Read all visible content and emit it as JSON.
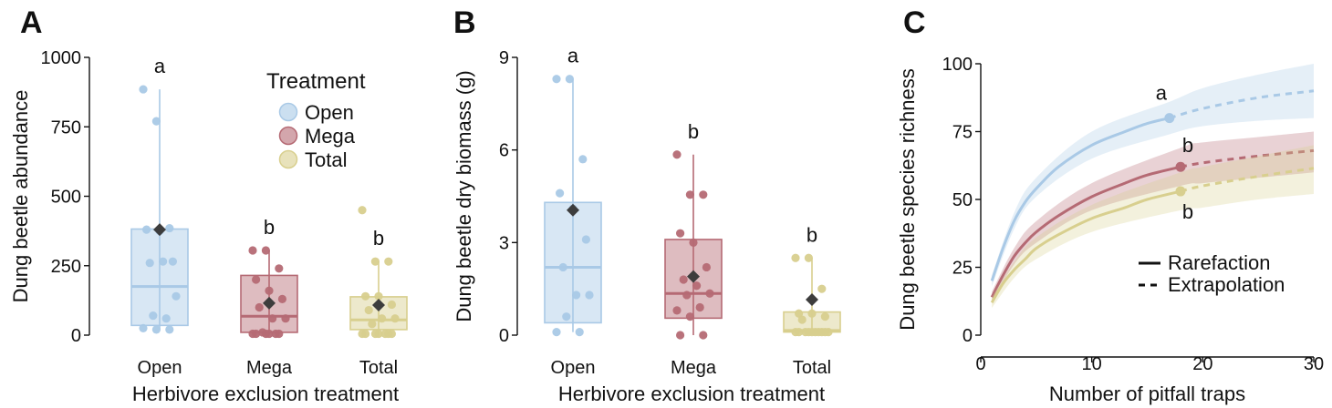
{
  "colors": {
    "Open": "#a9c9e6",
    "Mega": "#b56a74",
    "Total": "#d8cf8e",
    "mean_marker": "#3d3d3d"
  },
  "chart_data": [
    {
      "panel": "A",
      "type": "box",
      "xlabel": "Herbivore exclusion treatment",
      "ylabel": "Dung beetle abundance",
      "ylim": [
        0,
        1000
      ],
      "yticks": [
        0,
        250,
        500,
        750,
        1000
      ],
      "categories": [
        "Open",
        "Mega",
        "Total"
      ],
      "legend": {
        "title": "Treatment",
        "position": "top-right",
        "entries": [
          "Open",
          "Mega",
          "Total"
        ]
      },
      "groups": [
        {
          "name": "Open",
          "q1": 35,
          "median": 175,
          "q3": 382,
          "whisker_low": 20,
          "whisker_high": 885,
          "mean": 380,
          "significance": "a",
          "points": [
            885,
            770,
            385,
            380,
            375,
            265,
            260,
            265,
            140,
            70,
            60,
            25,
            20,
            20
          ]
        },
        {
          "name": "Mega",
          "q1": 10,
          "median": 68,
          "q3": 215,
          "whisker_low": 0,
          "whisker_high": 305,
          "mean": 115,
          "significance": "b",
          "points": [
            305,
            305,
            240,
            200,
            160,
            130,
            100,
            60,
            60,
            10,
            5,
            5,
            5,
            5,
            5,
            5
          ]
        },
        {
          "name": "Total",
          "q1": 20,
          "median": 55,
          "q3": 138,
          "whisker_low": 0,
          "whisker_high": 265,
          "mean": 108,
          "significance": "b",
          "points": [
            450,
            265,
            265,
            140,
            140,
            110,
            90,
            60,
            60,
            40,
            5,
            5,
            5,
            5,
            5,
            5,
            5
          ]
        }
      ]
    },
    {
      "panel": "B",
      "type": "box",
      "xlabel": "Herbivore exclusion treatment",
      "ylabel": "Dung beetle dry biomass (g)",
      "ylim": [
        0,
        9
      ],
      "yticks": [
        0,
        3,
        6,
        9
      ],
      "categories": [
        "Open",
        "Mega",
        "Total"
      ],
      "groups": [
        {
          "name": "Open",
          "q1": 0.4,
          "median": 2.2,
          "q3": 4.3,
          "whisker_low": 0.1,
          "whisker_high": 8.3,
          "mean": 4.05,
          "significance": "a",
          "points": [
            8.3,
            8.3,
            5.7,
            4.6,
            4.1,
            3.1,
            2.2,
            1.3,
            1.3,
            0.6,
            0.1,
            0.1
          ]
        },
        {
          "name": "Mega",
          "q1": 0.55,
          "median": 1.35,
          "q3": 3.1,
          "whisker_low": 0.0,
          "whisker_high": 5.85,
          "mean": 1.9,
          "significance": "b",
          "points": [
            5.85,
            4.55,
            4.55,
            3.3,
            3.0,
            2.2,
            1.8,
            1.6,
            1.35,
            1.3,
            0.9,
            0.8,
            0.6,
            0.0,
            0.0
          ]
        },
        {
          "name": "Total",
          "q1": 0.1,
          "median": 0.15,
          "q3": 0.75,
          "whisker_low": 0.05,
          "whisker_high": 2.5,
          "mean": 1.15,
          "significance": "b",
          "points": [
            2.5,
            2.5,
            1.5,
            0.7,
            0.7,
            0.6,
            0.5,
            0.1,
            0.1,
            0.1,
            0.1,
            0.1,
            0.1,
            0.1,
            0.1,
            0.1,
            0.1
          ]
        }
      ]
    },
    {
      "panel": "C",
      "type": "line",
      "xlabel": "Number of pitfall traps",
      "ylabel": "Dung beetle species richness",
      "xlim": [
        0,
        30
      ],
      "ylim": [
        0,
        100
      ],
      "xticks": [
        0,
        10,
        20,
        30
      ],
      "yticks": [
        0,
        25,
        50,
        75,
        100
      ],
      "legend": {
        "position": "bottom-right",
        "entries": [
          {
            "label": "Rarefaction",
            "style": "solid"
          },
          {
            "label": "Extrapolation",
            "style": "dashed"
          }
        ]
      },
      "series": [
        {
          "name": "Open",
          "observed_x": 17,
          "observed_y": 80,
          "significance": "a",
          "rarefaction": [
            [
              1,
              20
            ],
            [
              2,
              32
            ],
            [
              3,
              42
            ],
            [
              4,
              49
            ],
            [
              5,
              54
            ],
            [
              7,
              62
            ],
            [
              10,
              70
            ],
            [
              13,
              75
            ],
            [
              15,
              78
            ],
            [
              17,
              80
            ]
          ],
          "extrapolation": [
            [
              17,
              80
            ],
            [
              20,
              83.5
            ],
            [
              25,
              87.5
            ],
            [
              30,
              90
            ]
          ],
          "ci_upper": [
            [
              1,
              22
            ],
            [
              3,
              45
            ],
            [
              5,
              58
            ],
            [
              10,
              75
            ],
            [
              17,
              86
            ],
            [
              20,
              91
            ],
            [
              25,
              96
            ],
            [
              30,
              100
            ]
          ],
          "ci_lower": [
            [
              1,
              18
            ],
            [
              3,
              39
            ],
            [
              5,
              51
            ],
            [
              10,
              65
            ],
            [
              17,
              74
            ],
            [
              20,
              77
            ],
            [
              25,
              79
            ],
            [
              30,
              80
            ]
          ]
        },
        {
          "name": "Mega",
          "observed_x": 18,
          "observed_y": 62,
          "significance": "b",
          "rarefaction": [
            [
              1,
              14
            ],
            [
              2,
              22
            ],
            [
              3,
              29
            ],
            [
              4,
              34
            ],
            [
              5,
              38
            ],
            [
              7,
              44
            ],
            [
              10,
              51
            ],
            [
              13,
              56
            ],
            [
              15,
              59
            ],
            [
              18,
              62
            ]
          ],
          "extrapolation": [
            [
              18,
              62
            ],
            [
              20,
              63.5
            ],
            [
              25,
              66
            ],
            [
              30,
              68
            ]
          ],
          "ci_upper": [
            [
              1,
              16
            ],
            [
              3,
              32
            ],
            [
              5,
              42
            ],
            [
              10,
              56
            ],
            [
              18,
              69
            ],
            [
              20,
              71
            ],
            [
              25,
              73
            ],
            [
              30,
              75
            ]
          ],
          "ci_lower": [
            [
              1,
              12
            ],
            [
              3,
              26
            ],
            [
              5,
              34
            ],
            [
              10,
              46
            ],
            [
              18,
              55
            ],
            [
              20,
              56
            ],
            [
              25,
              58
            ],
            [
              30,
              60
            ]
          ]
        },
        {
          "name": "Total",
          "observed_x": 18,
          "observed_y": 53,
          "significance": "b",
          "rarefaction": [
            [
              1,
              12
            ],
            [
              2,
              19
            ],
            [
              3,
              24
            ],
            [
              4,
              28
            ],
            [
              5,
              32
            ],
            [
              7,
              37
            ],
            [
              10,
              43
            ],
            [
              13,
              47
            ],
            [
              15,
              50
            ],
            [
              18,
              53
            ]
          ],
          "extrapolation": [
            [
              18,
              53
            ],
            [
              20,
              55
            ],
            [
              25,
              58.5
            ],
            [
              30,
              61.5
            ]
          ],
          "ci_upper": [
            [
              1,
              14
            ],
            [
              3,
              27
            ],
            [
              5,
              36
            ],
            [
              10,
              48
            ],
            [
              18,
              60
            ],
            [
              20,
              62
            ],
            [
              25,
              66
            ],
            [
              30,
              70
            ]
          ],
          "ci_lower": [
            [
              1,
              10
            ],
            [
              3,
              21
            ],
            [
              5,
              28
            ],
            [
              10,
              38
            ],
            [
              18,
              46
            ],
            [
              20,
              47
            ],
            [
              25,
              50
            ],
            [
              30,
              52
            ]
          ]
        }
      ]
    }
  ],
  "panel_letters": [
    "A",
    "B",
    "C"
  ]
}
